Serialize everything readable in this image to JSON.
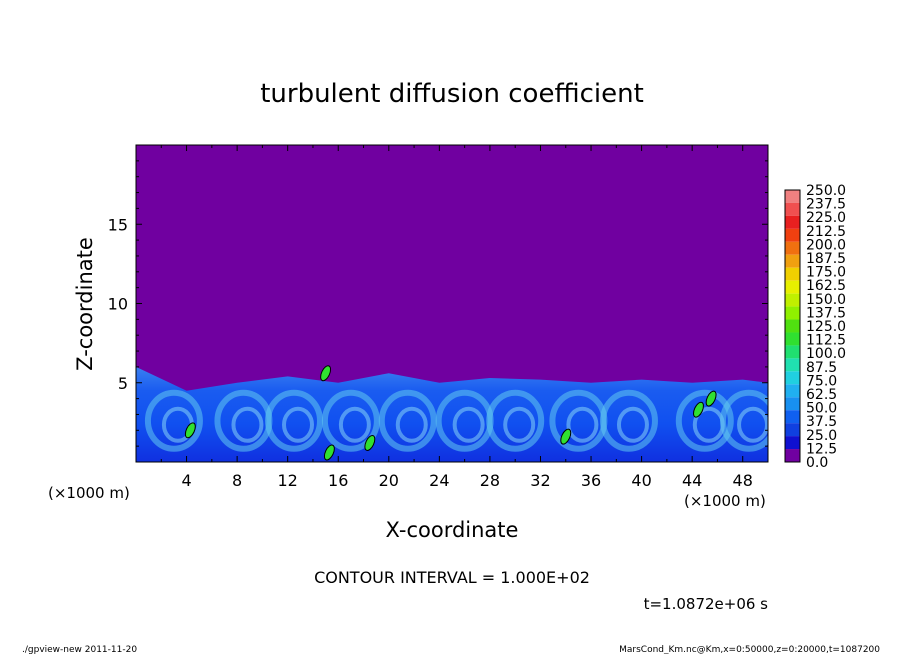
{
  "chart_data": {
    "type": "heatmap",
    "title": "turbulent diffusion coefficient",
    "xlabel": "X-coordinate",
    "ylabel": "Z-coordinate",
    "x_unit": "(×1000 m)",
    "y_unit": "(×1000 m)",
    "xlim": [
      0,
      50
    ],
    "ylim": [
      0,
      20
    ],
    "x_ticks": [
      4,
      8,
      12,
      16,
      20,
      24,
      28,
      32,
      36,
      40,
      44,
      48
    ],
    "y_ticks": [
      5,
      10,
      15
    ],
    "colorbar": {
      "levels": [
        "250.0",
        "237.5",
        "225.0",
        "212.5",
        "200.0",
        "187.5",
        "175.0",
        "162.5",
        "150.0",
        "137.5",
        "125.0",
        "112.5",
        "100.0",
        "87.5",
        "75.0",
        "62.5",
        "50.0",
        "37.5",
        "25.0",
        "12.5",
        "0.0"
      ],
      "colors": [
        "#f08080",
        "#f05050",
        "#e82020",
        "#f04010",
        "#f07010",
        "#f0a010",
        "#f0d000",
        "#e8f000",
        "#c0f000",
        "#90f000",
        "#50e010",
        "#30e030",
        "#20e070",
        "#20e0b0",
        "#20d0e0",
        "#20b0f0",
        "#1890f0",
        "#1060f0",
        "#1040e0",
        "#1010d0",
        "#7000a0"
      ]
    },
    "background_value_color": "#7000a0",
    "turbulent_layer_top_approx": [
      {
        "x": 0,
        "z": 6.0
      },
      {
        "x": 4,
        "z": 4.5
      },
      {
        "x": 8,
        "z": 5.0
      },
      {
        "x": 12,
        "z": 5.4
      },
      {
        "x": 16,
        "z": 5.0
      },
      {
        "x": 20,
        "z": 5.6
      },
      {
        "x": 24,
        "z": 5.0
      },
      {
        "x": 28,
        "z": 5.3
      },
      {
        "x": 32,
        "z": 5.2
      },
      {
        "x": 36,
        "z": 5.0
      },
      {
        "x": 40,
        "z": 5.2
      },
      {
        "x": 44,
        "z": 5.0
      },
      {
        "x": 48,
        "z": 5.2
      },
      {
        "x": 50,
        "z": 5.0
      }
    ],
    "contour_interval_text": "CONTOUR INTERVAL = 1.000E+02",
    "time_text": "t=1.0872e+06 s"
  },
  "footer": {
    "left": "./gpview-new  2011-11-20",
    "right": "MarsCond_Km.nc@Km,x=0:50000,z=0:20000,t=1087200"
  }
}
